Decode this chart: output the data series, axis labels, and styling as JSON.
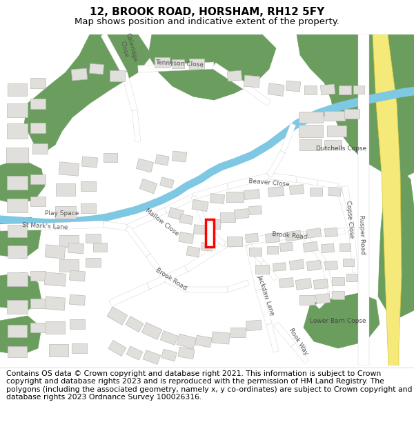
{
  "title": "12, BROOK ROAD, HORSHAM, RH12 5FY",
  "subtitle": "Map shows position and indicative extent of the property.",
  "footer": "Contains OS data © Crown copyright and database right 2021. This information is subject to Crown copyright and database rights 2023 and is reproduced with the permission of HM Land Registry. The polygons (including the associated geometry, namely x, y co-ordinates) are subject to Crown copyright and database rights 2023 Ordnance Survey 100026316.",
  "bg_color": "#f0efeb",
  "map_bg": "#f5f4f0",
  "road_color": "#ffffff",
  "road_edge": "#cccccc",
  "building_color": "#e0dfdb",
  "building_edge": "#bbbbba",
  "green_color": "#6b9e5e",
  "water_color": "#7ec8e3",
  "yellow_road": "#f5e97a",
  "yellow_road_edge": "#e8d84a",
  "highlight_color": "#ff0000",
  "title_fontsize": 11,
  "subtitle_fontsize": 9.5,
  "footer_fontsize": 7.8,
  "label_color": "#555555",
  "label_fontsize": 7.0
}
